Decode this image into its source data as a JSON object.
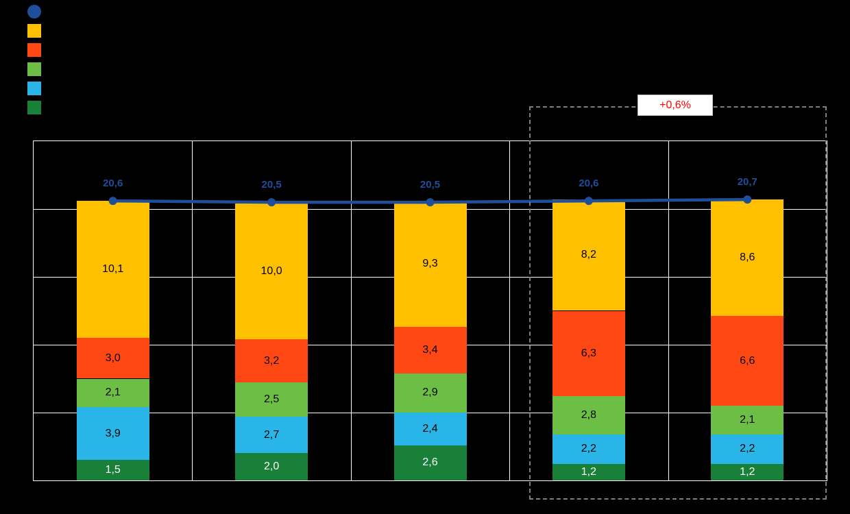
{
  "annotation": {
    "delta_label": "+0,6%",
    "text_color": "#FF0000",
    "box_background": "#FFFFFF"
  },
  "legend": {
    "items": [
      {
        "name": "line-series-swatch",
        "shape": "circle",
        "color": "#1F4E9B"
      },
      {
        "name": "yellow-series-swatch",
        "shape": "square",
        "color": "#FFC000"
      },
      {
        "name": "orange-series-swatch",
        "shape": "square",
        "color": "#FF4713"
      },
      {
        "name": "green-series-swatch",
        "shape": "square",
        "color": "#6CBE45"
      },
      {
        "name": "lightblue-series-swatch",
        "shape": "square",
        "color": "#29B5E8"
      },
      {
        "name": "darkgreen-series-swatch",
        "shape": "square",
        "color": "#188038"
      }
    ]
  },
  "chart_data": {
    "type": "bar",
    "subtype": "stacked-bar-with-total-line",
    "categories": [
      "",
      "",
      "",
      "",
      ""
    ],
    "ylim": [
      0,
      25
    ],
    "grid_step": 5,
    "grid_color": "#FFFFFF",
    "legend_position": "top-left",
    "highlight": {
      "category_indexes": [
        3,
        4
      ],
      "label": "+0,6%",
      "border_color": "#7F7F7F"
    },
    "series": [
      {
        "name": "total-line",
        "type": "line",
        "color": "#1F4E9B",
        "values": [
          20.6,
          20.5,
          20.5,
          20.6,
          20.7
        ],
        "labels": [
          "20,6",
          "20,5",
          "20,5",
          "20,6",
          "20,7"
        ]
      },
      {
        "name": "yellow",
        "type": "bar",
        "color": "#FFC000",
        "label_color": "#000000",
        "values": [
          10.1,
          10.0,
          9.3,
          8.2,
          8.6
        ],
        "labels": [
          "10,1",
          "10,0",
          "9,3",
          "8,2",
          "8,6"
        ]
      },
      {
        "name": "orange",
        "type": "bar",
        "color": "#FF4713",
        "label_color": "#000000",
        "values": [
          3.0,
          3.2,
          3.4,
          6.3,
          6.6
        ],
        "labels": [
          "3,0",
          "3,2",
          "3,4",
          "6,3",
          "6,6"
        ]
      },
      {
        "name": "green",
        "type": "bar",
        "color": "#6CBE45",
        "label_color": "#000000",
        "values": [
          2.1,
          2.5,
          2.9,
          2.8,
          2.1
        ],
        "labels": [
          "2,1",
          "2,5",
          "2,9",
          "2,8",
          "2,1"
        ]
      },
      {
        "name": "light-blue",
        "type": "bar",
        "color": "#29B5E8",
        "label_color": "#000000",
        "values": [
          3.9,
          2.7,
          2.4,
          2.2,
          2.2
        ],
        "labels": [
          "3,9",
          "2,7",
          "2,4",
          "2,2",
          "2,2"
        ]
      },
      {
        "name": "dark-green",
        "type": "bar",
        "color": "#188038",
        "label_color": "#FFFFFF",
        "values": [
          1.5,
          2.0,
          2.6,
          1.2,
          1.2
        ],
        "labels": [
          "1,5",
          "2,0",
          "2,6",
          "1,2",
          "1,2"
        ]
      }
    ]
  }
}
